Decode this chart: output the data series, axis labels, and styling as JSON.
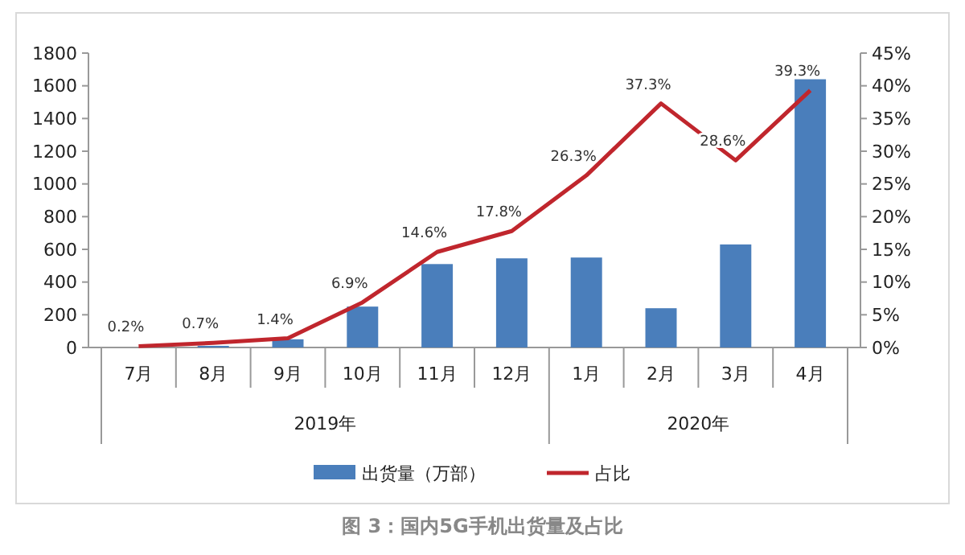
{
  "chart_data": {
    "type": "bar",
    "categories": [
      "7月",
      "8月",
      "9月",
      "10月",
      "11月",
      "12月",
      "1月",
      "2月",
      "3月",
      "4月"
    ],
    "series": [
      {
        "name": "出货量（万部）",
        "color": "#4a7ebb",
        "values": [
          0,
          10,
          50,
          250,
          510,
          545,
          550,
          240,
          630,
          1640
        ]
      },
      {
        "name": "占比",
        "type": "line",
        "axis": "y2",
        "color": "#c0262d",
        "values": [
          0.2,
          0.7,
          1.4,
          6.9,
          14.6,
          17.8,
          26.3,
          37.3,
          28.6,
          39.3
        ],
        "value_labels": [
          "0.2%",
          "0.7%",
          "1.4%",
          "6.9%",
          "14.6%",
          "17.8%",
          "26.3%",
          "37.3%",
          "28.6%",
          "39.3%"
        ]
      }
    ],
    "ylim": [
      0,
      1800
    ],
    "yticks": [
      0,
      200,
      400,
      600,
      800,
      1000,
      1200,
      1400,
      1600,
      1800
    ],
    "y2lim": [
      0,
      45
    ],
    "y2ticks": [
      {
        "value": 0,
        "label": "0%"
      },
      {
        "value": 5,
        "label": "5%"
      },
      {
        "value": 10,
        "label": "10%"
      },
      {
        "value": 15,
        "label": "15%"
      },
      {
        "value": 20,
        "label": "20%"
      },
      {
        "value": 25,
        "label": "25%"
      },
      {
        "value": 30,
        "label": "30%"
      },
      {
        "value": 35,
        "label": "35%"
      },
      {
        "value": 40,
        "label": "40%"
      },
      {
        "value": 45,
        "label": "45%"
      }
    ],
    "annotations": [
      "2019年",
      "2020年",
      "图 3：国内5G手机出货量及占比"
    ],
    "legend": "bottom",
    "grid": false,
    "marker": "none",
    "line_style": "solid"
  }
}
